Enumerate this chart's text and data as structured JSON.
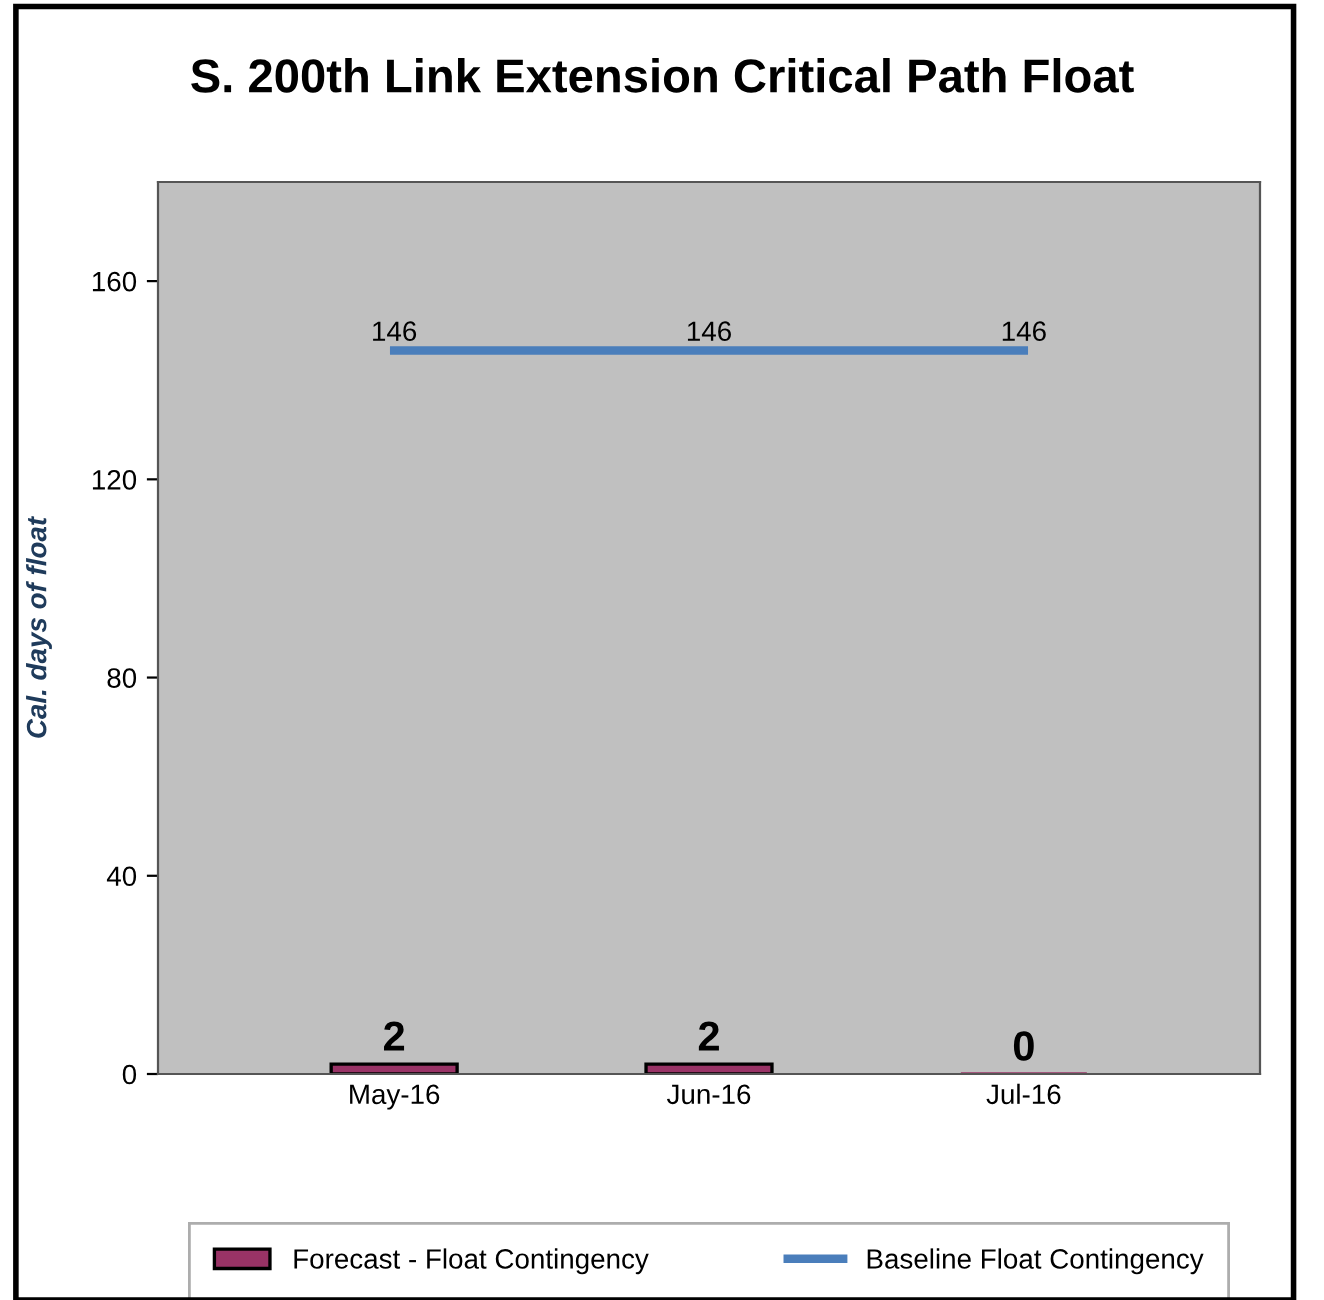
{
  "chart_data": {
    "type": "bar",
    "title": "S. 200th Link Extension Critical Path Float",
    "ylabel": "Cal. days of float",
    "categories": [
      "May-16",
      "Jun-16",
      "Jul-16"
    ],
    "series": [
      {
        "name": "Forecast - Float Contingency",
        "color": "#993366",
        "values": [
          2,
          2,
          0
        ]
      },
      {
        "name": "Baseline Float Contingency",
        "type": "line",
        "color": "#4a7ebb",
        "values": [
          146,
          146,
          146
        ]
      }
    ],
    "ylim": [
      0,
      180
    ],
    "yticks": [
      0,
      40,
      80,
      120,
      160
    ],
    "grid": false,
    "legend": "bottom",
    "data_labels": true
  }
}
